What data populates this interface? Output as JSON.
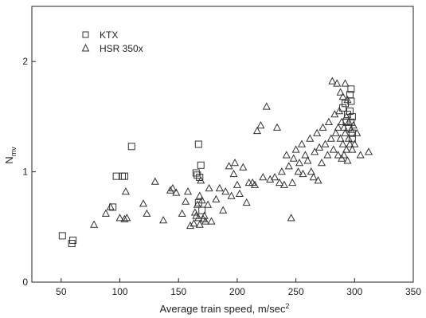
{
  "chart_data": {
    "type": "scatter",
    "title": "",
    "xlabel": "Average train speed, m/sec",
    "xlabel_sup": "2",
    "ylabel_main": "N",
    "ylabel_sub": "mv",
    "xlim": [
      25,
      350
    ],
    "ylim": [
      0,
      2.5
    ],
    "xticks": [
      50,
      100,
      150,
      200,
      250,
      300,
      350
    ],
    "yticks": [
      0,
      1,
      2
    ],
    "grid": false,
    "legend_position": "top-left",
    "series": [
      {
        "name": "KTX",
        "marker": "square",
        "points": [
          [
            51,
            0.42
          ],
          [
            59,
            0.35
          ],
          [
            60,
            0.38
          ],
          [
            94,
            0.68
          ],
          [
            97,
            0.96
          ],
          [
            102,
            0.96
          ],
          [
            104,
            0.96
          ],
          [
            110,
            1.23
          ],
          [
            165,
            0.99
          ],
          [
            166,
            0.97
          ],
          [
            167,
            1.25
          ],
          [
            168,
            0.95
          ],
          [
            169,
            1.06
          ],
          [
            170,
            0.65
          ],
          [
            167,
            0.72
          ],
          [
            290,
            1.58
          ],
          [
            292,
            1.62
          ],
          [
            293,
            1.45
          ],
          [
            294,
            1.52
          ],
          [
            295,
            1.4
          ],
          [
            296,
            1.7
          ],
          [
            296,
            1.55
          ],
          [
            297,
            1.75
          ],
          [
            297,
            1.64
          ],
          [
            297,
            1.45
          ],
          [
            298,
            1.5
          ],
          [
            298,
            1.35
          ],
          [
            298,
            1.3
          ]
        ]
      },
      {
        "name": "HSR 350x",
        "marker": "triangle",
        "points": [
          [
            78,
            0.52
          ],
          [
            88,
            0.62
          ],
          [
            92,
            0.68
          ],
          [
            100,
            0.58
          ],
          [
            104,
            0.57
          ],
          [
            105,
            0.82
          ],
          [
            106,
            0.58
          ],
          [
            120,
            0.71
          ],
          [
            123,
            0.62
          ],
          [
            130,
            0.91
          ],
          [
            137,
            0.56
          ],
          [
            143,
            0.83
          ],
          [
            145,
            0.85
          ],
          [
            148,
            0.81
          ],
          [
            153,
            0.62
          ],
          [
            156,
            0.73
          ],
          [
            158,
            0.82
          ],
          [
            160,
            0.51
          ],
          [
            163,
            0.53
          ],
          [
            164,
            0.63
          ],
          [
            165,
            0.6
          ],
          [
            166,
            0.7
          ],
          [
            167,
            0.58
          ],
          [
            168,
            0.52
          ],
          [
            168,
            0.78
          ],
          [
            169,
            0.92
          ],
          [
            170,
            0.74
          ],
          [
            171,
            0.57
          ],
          [
            172,
            0.6
          ],
          [
            173,
            0.55
          ],
          [
            175,
            0.7
          ],
          [
            176,
            0.85
          ],
          [
            178,
            0.55
          ],
          [
            182,
            0.75
          ],
          [
            185,
            0.85
          ],
          [
            188,
            0.65
          ],
          [
            190,
            0.82
          ],
          [
            193,
            1.05
          ],
          [
            195,
            0.78
          ],
          [
            197,
            0.98
          ],
          [
            198,
            1.08
          ],
          [
            200,
            0.88
          ],
          [
            202,
            0.8
          ],
          [
            205,
            1.04
          ],
          [
            208,
            0.72
          ],
          [
            210,
            0.9
          ],
          [
            213,
            0.9
          ],
          [
            215,
            0.88
          ],
          [
            217,
            1.37
          ],
          [
            220,
            1.42
          ],
          [
            222,
            0.95
          ],
          [
            225,
            1.59
          ],
          [
            228,
            0.93
          ],
          [
            232,
            0.95
          ],
          [
            234,
            1.4
          ],
          [
            236,
            0.9
          ],
          [
            238,
            1.0
          ],
          [
            240,
            0.88
          ],
          [
            242,
            1.15
          ],
          [
            244,
            1.05
          ],
          [
            246,
            0.58
          ],
          [
            247,
            0.9
          ],
          [
            248,
            1.12
          ],
          [
            250,
            1.2
          ],
          [
            252,
            1.0
          ],
          [
            253,
            1.08
          ],
          [
            255,
            1.25
          ],
          [
            256,
            0.98
          ],
          [
            258,
            1.15
          ],
          [
            260,
            1.1
          ],
          [
            262,
            1.3
          ],
          [
            263,
            1.0
          ],
          [
            265,
            0.95
          ],
          [
            266,
            1.18
          ],
          [
            268,
            1.35
          ],
          [
            269,
            0.92
          ],
          [
            270,
            1.22
          ],
          [
            272,
            1.08
          ],
          [
            273,
            1.4
          ],
          [
            275,
            1.25
          ],
          [
            277,
            1.15
          ],
          [
            278,
            1.45
          ],
          [
            280,
            1.3
          ],
          [
            281,
            1.82
          ],
          [
            282,
            1.2
          ],
          [
            283,
            1.52
          ],
          [
            284,
            1.35
          ],
          [
            285,
            1.8
          ],
          [
            286,
            1.4
          ],
          [
            286,
            1.15
          ],
          [
            287,
            1.55
          ],
          [
            288,
            1.3
          ],
          [
            288,
            1.72
          ],
          [
            289,
            1.12
          ],
          [
            289,
            1.45
          ],
          [
            290,
            1.25
          ],
          [
            290,
            1.68
          ],
          [
            291,
            1.4
          ],
          [
            291,
            1.15
          ],
          [
            292,
            1.8
          ],
          [
            292,
            1.35
          ],
          [
            293,
            1.2
          ],
          [
            293,
            1.5
          ],
          [
            294,
            1.1
          ],
          [
            294,
            1.65
          ],
          [
            295,
            1.3
          ],
          [
            295,
            1.45
          ],
          [
            296,
            1.25
          ],
          [
            297,
            1.38
          ],
          [
            298,
            1.2
          ],
          [
            299,
            1.42
          ],
          [
            300,
            1.25
          ],
          [
            302,
            1.35
          ],
          [
            305,
            1.15
          ],
          [
            312,
            1.18
          ]
        ]
      }
    ]
  }
}
